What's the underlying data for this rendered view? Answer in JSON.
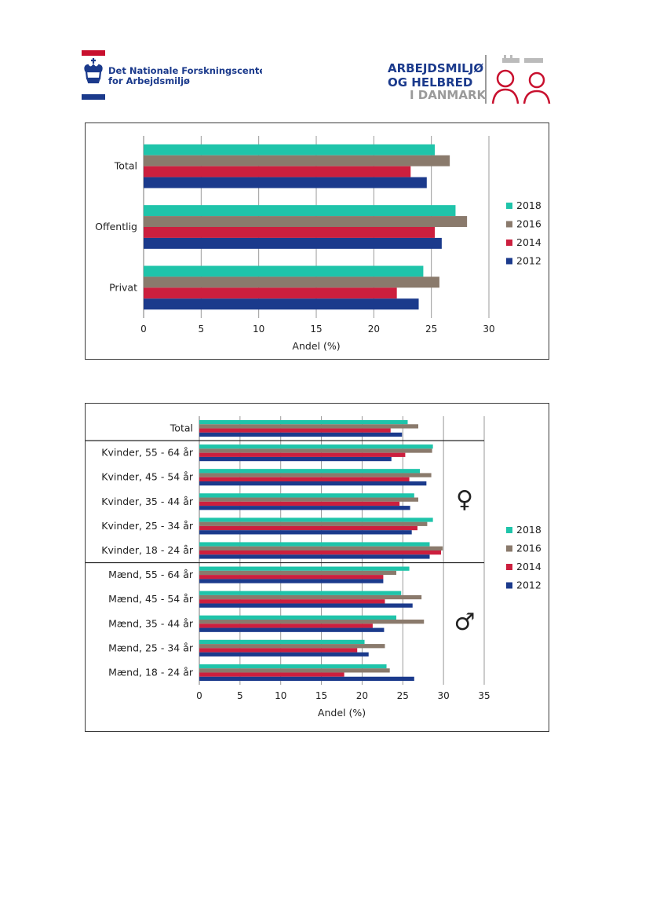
{
  "header": {
    "left_logo_text_1": "Det Nationale Forskningscenter",
    "left_logo_text_2": "for Arbejdsmiljø",
    "right_logo_text_1": "ARBEJDSMILJØ",
    "right_logo_text_2": "OG HELBRED",
    "right_logo_text_3": "I DANMARK"
  },
  "colors": {
    "2018": "#1fc4aa",
    "2016": "#8a7a6c",
    "2014": "#cc1f3e",
    "2012": "#1b3a8c",
    "brand_red": "#c8102e",
    "brand_blue": "#1b3a8c"
  },
  "chart_data": [
    {
      "type": "bar",
      "orientation": "horizontal",
      "categories": [
        "Total",
        "Offentlig",
        "Privat"
      ],
      "series": [
        {
          "name": "2018",
          "values": [
            25.3,
            27.1,
            24.3
          ]
        },
        {
          "name": "2016",
          "values": [
            26.6,
            28.1,
            25.7
          ]
        },
        {
          "name": "2014",
          "values": [
            23.2,
            25.3,
            22.0
          ]
        },
        {
          "name": "2012",
          "values": [
            24.6,
            25.9,
            23.9
          ]
        }
      ],
      "xlabel": "Andel (%)",
      "xticks": [
        "0",
        "5",
        "10",
        "15",
        "20",
        "25",
        "30"
      ],
      "xlim": [
        0,
        30
      ],
      "legend": [
        "2018",
        "2016",
        "2014",
        "2012"
      ],
      "legend_position": "right",
      "grid": true
    },
    {
      "type": "bar",
      "orientation": "horizontal",
      "categories": [
        "Total",
        "Kvinder, 55 - 64 år",
        "Kvinder, 45 - 54 år",
        "Kvinder, 35 - 44 år",
        "Kvinder, 25 - 34 år",
        "Kvinder, 18 - 24 år",
        "Mænd, 55 - 64 år",
        "Mænd, 45 - 54 år",
        "Mænd, 35 - 44 år",
        "Mænd, 25 - 34 år",
        "Mænd, 18 - 24 år"
      ],
      "series": [
        {
          "name": "2018",
          "values": [
            25.6,
            28.7,
            27.1,
            26.4,
            28.7,
            28.3,
            25.8,
            24.8,
            24.2,
            20.3,
            23.0
          ]
        },
        {
          "name": "2016",
          "values": [
            26.9,
            28.6,
            28.5,
            26.9,
            28.0,
            29.9,
            24.2,
            27.3,
            27.6,
            22.8,
            23.4
          ]
        },
        {
          "name": "2014",
          "values": [
            23.5,
            25.3,
            25.8,
            24.6,
            26.8,
            29.7,
            22.6,
            22.8,
            21.3,
            19.4,
            17.8
          ]
        },
        {
          "name": "2012",
          "values": [
            24.9,
            23.6,
            27.9,
            25.9,
            26.1,
            28.3,
            22.6,
            26.2,
            22.7,
            20.8,
            26.4
          ]
        }
      ],
      "xlabel": "Andel (%)",
      "xticks": [
        "0",
        "5",
        "10",
        "15",
        "20",
        "25",
        "30",
        "35"
      ],
      "xlim": [
        0,
        35
      ],
      "legend": [
        "2018",
        "2016",
        "2014",
        "2012"
      ],
      "legend_position": "right",
      "grid": true,
      "annotations": [
        "♀",
        "♂"
      ]
    }
  ]
}
